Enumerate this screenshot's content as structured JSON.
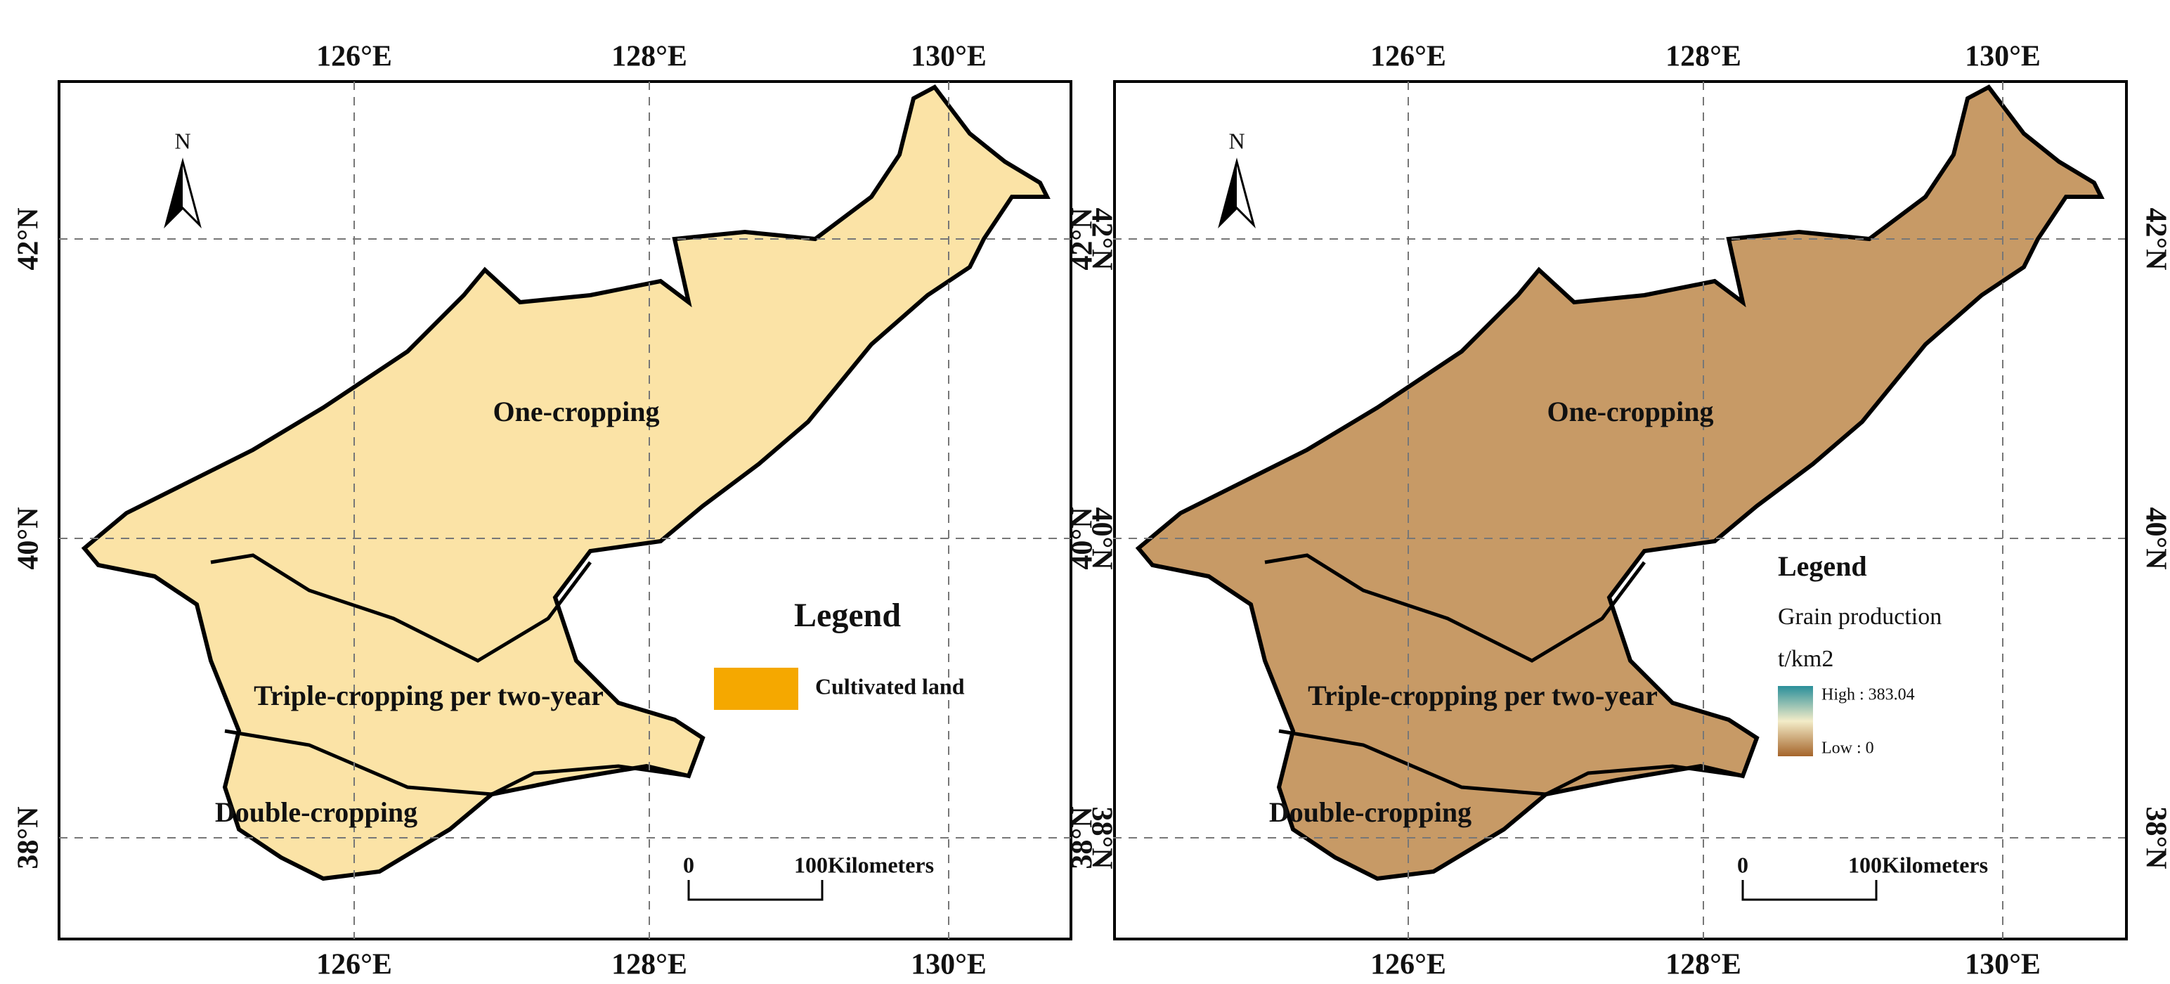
{
  "panels": [
    {
      "top_ticks": [
        "126°E",
        "128°E",
        "130°E"
      ],
      "bottom_ticks": [
        "126°E",
        "128°E",
        "130°E"
      ],
      "left_ticks": [
        "42°N",
        "40°N",
        "38°N"
      ],
      "right_ticks": [
        "42°N",
        "40°N",
        "38°N"
      ],
      "north": "N",
      "regions": [
        "One-cropping",
        "Triple-cropping per two-year",
        "Double-cropping"
      ],
      "legend": {
        "title": "Legend",
        "items": [
          "Cultivated land"
        ]
      },
      "scale": {
        "zero": "0",
        "end": "100",
        "unit": "Kilometers"
      }
    },
    {
      "top_ticks": [
        "126°E",
        "128°E",
        "130°E"
      ],
      "bottom_ticks": [
        "126°E",
        "128°E",
        "130°E"
      ],
      "left_ticks": [
        "42°N",
        "40°N",
        "38°N"
      ],
      "right_ticks": [
        "42°N",
        "40°N",
        "38°N"
      ],
      "north": "N",
      "regions": [
        "One-cropping",
        "Triple-cropping per two-year",
        "Double-cropping"
      ],
      "legend": {
        "title": "Legend",
        "items": [
          "Grain production",
          "t/km2",
          "High : 383.04",
          "Low : 0"
        ]
      },
      "scale": {
        "zero": "0",
        "end": "100",
        "unit": "Kilometers"
      }
    }
  ]
}
